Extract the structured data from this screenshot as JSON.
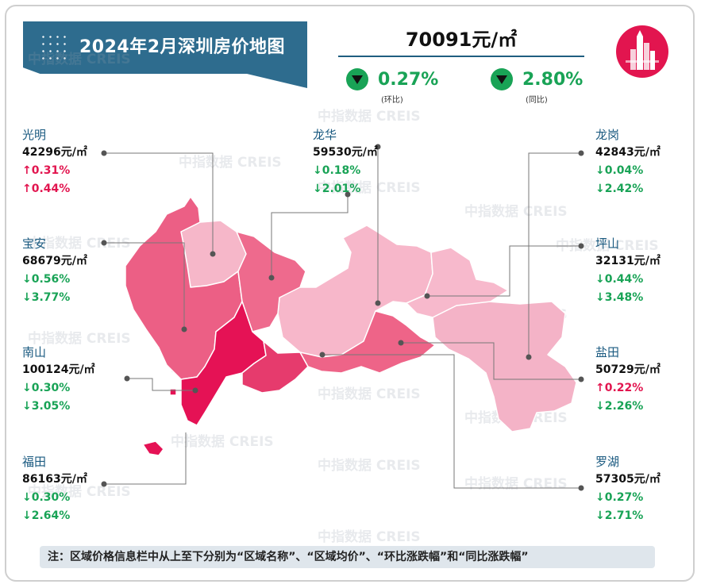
{
  "header": {
    "title": "2024年2月深圳房价地图",
    "avg_price": "70091元/㎡",
    "mom": {
      "value": "0.27%",
      "label": "(环比)",
      "direction": "down"
    },
    "yoy": {
      "value": "2.80%",
      "label": "(同比)",
      "direction": "down"
    }
  },
  "watermark": "中指数据  CREIS",
  "colors": {
    "up": "#e2154f",
    "down": "#19a356",
    "banner": "#2e6c8e",
    "label": "#1a5a80"
  },
  "districts": {
    "guangming": {
      "name": "光明",
      "price": "42296元/㎡",
      "mom": "↑0.31%",
      "yoy": "↑0.44%",
      "mom_dir": "up",
      "yoy_dir": "up"
    },
    "baoan": {
      "name": "宝安",
      "price": "68679元/㎡",
      "mom": "↓0.56%",
      "yoy": "↓3.77%",
      "mom_dir": "down",
      "yoy_dir": "down"
    },
    "nanshan": {
      "name": "南山",
      "price": "100124元/㎡",
      "mom": "↓0.30%",
      "yoy": "↓3.05%",
      "mom_dir": "down",
      "yoy_dir": "down"
    },
    "futian": {
      "name": "福田",
      "price": "86163元/㎡",
      "mom": "↓0.30%",
      "yoy": "↓2.64%",
      "mom_dir": "down",
      "yoy_dir": "down"
    },
    "longhua": {
      "name": "龙华",
      "price": "59530元/㎡",
      "mom": "↓0.18%",
      "yoy": "↓2.01%",
      "mom_dir": "down",
      "yoy_dir": "down"
    },
    "longgang": {
      "name": "龙岗",
      "price": "42843元/㎡",
      "mom": "↓0.04%",
      "yoy": "↓2.42%",
      "mom_dir": "down",
      "yoy_dir": "down"
    },
    "pingshan": {
      "name": "坪山",
      "price": "32131元/㎡",
      "mom": "↓0.44%",
      "yoy": "↓3.48%",
      "mom_dir": "down",
      "yoy_dir": "down"
    },
    "yantian": {
      "name": "盐田",
      "price": "50729元/㎡",
      "mom": "↑0.22%",
      "yoy": "↓2.26%",
      "mom_dir": "up",
      "yoy_dir": "down"
    },
    "luohu": {
      "name": "罗湖",
      "price": "57305元/㎡",
      "mom": "↓0.27%",
      "yoy": "↓2.71%",
      "mom_dir": "down",
      "yoy_dir": "down"
    }
  },
  "footnote": "注：区域价格信息栏中从上至下分别为“区域名称”、“区域均价”、“环比涨跌幅”和“同比涨跌幅”"
}
